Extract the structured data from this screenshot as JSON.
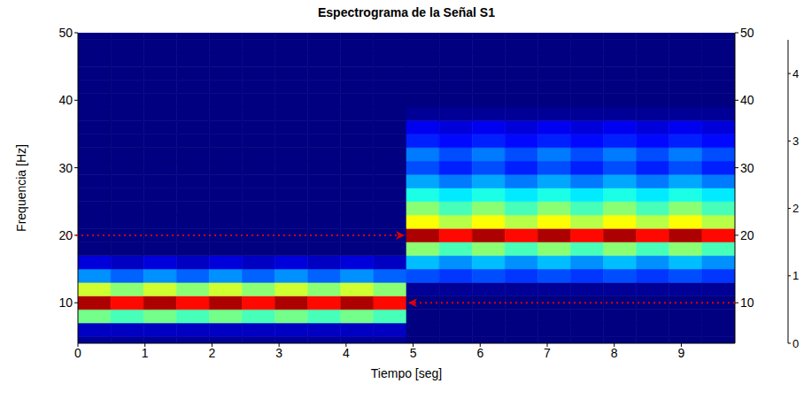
{
  "chart_data": {
    "type": "heatmap",
    "title": "Espectrograma de la Señal S1",
    "x_label": "Tiempo [seg]",
    "y_label": "Frequencia [Hz]",
    "xlim": [
      0,
      9.8
    ],
    "xticks": [
      0,
      1,
      2,
      3,
      4,
      5,
      6,
      7,
      8,
      9
    ],
    "ylim": [
      4,
      50
    ],
    "yticks": [
      10,
      20,
      30,
      40,
      50
    ],
    "grid": false,
    "time_edges": [
      0,
      0.49,
      0.98,
      1.47,
      1.96,
      2.45,
      2.94,
      3.43,
      3.92,
      4.41,
      4.9,
      5.39,
      5.88,
      6.37,
      6.86,
      7.35,
      7.84,
      8.33,
      8.82,
      9.31,
      9.8
    ],
    "freq_edges": [
      4,
      5,
      7,
      9,
      11,
      13,
      15,
      17,
      19,
      21,
      23,
      25,
      27,
      29,
      31,
      33,
      35,
      37,
      39,
      41,
      43,
      45,
      47,
      49,
      50
    ],
    "cells": [
      [
        0.1,
        0.3,
        2.2,
        4.3,
        2.6,
        1.2,
        0.4,
        0,
        0,
        0,
        0,
        0,
        0,
        0,
        0,
        0,
        0,
        0,
        0,
        0,
        0,
        0,
        0,
        0
      ],
      [
        0.1,
        0.3,
        2.0,
        3.9,
        2.3,
        1.0,
        0.3,
        0,
        0,
        0,
        0,
        0,
        0,
        0,
        0,
        0,
        0,
        0,
        0,
        0,
        0,
        0,
        0,
        0
      ],
      [
        0.1,
        0.3,
        2.2,
        4.3,
        2.6,
        1.2,
        0.4,
        0,
        0,
        0,
        0,
        0,
        0,
        0,
        0,
        0,
        0,
        0,
        0,
        0,
        0,
        0,
        0,
        0
      ],
      [
        0.1,
        0.3,
        2.0,
        3.9,
        2.3,
        1.0,
        0.3,
        0,
        0,
        0,
        0,
        0,
        0,
        0,
        0,
        0,
        0,
        0,
        0,
        0,
        0,
        0,
        0,
        0
      ],
      [
        0.1,
        0.3,
        2.2,
        4.3,
        2.6,
        1.2,
        0.4,
        0,
        0,
        0,
        0,
        0,
        0,
        0,
        0,
        0,
        0,
        0,
        0,
        0,
        0,
        0,
        0,
        0
      ],
      [
        0.1,
        0.3,
        2.0,
        3.9,
        2.3,
        1.0,
        0.3,
        0,
        0,
        0,
        0,
        0,
        0,
        0,
        0,
        0,
        0,
        0,
        0,
        0,
        0,
        0,
        0,
        0
      ],
      [
        0.1,
        0.3,
        2.2,
        4.3,
        2.6,
        1.2,
        0.4,
        0,
        0,
        0,
        0,
        0,
        0,
        0,
        0,
        0,
        0,
        0,
        0,
        0,
        0,
        0,
        0,
        0
      ],
      [
        0.1,
        0.3,
        2.0,
        3.9,
        2.3,
        1.0,
        0.3,
        0,
        0,
        0,
        0,
        0,
        0,
        0,
        0,
        0,
        0,
        0,
        0,
        0,
        0,
        0,
        0,
        0
      ],
      [
        0.1,
        0.3,
        2.2,
        4.3,
        2.6,
        1.2,
        0.4,
        0,
        0,
        0,
        0,
        0,
        0,
        0,
        0,
        0,
        0,
        0,
        0,
        0,
        0,
        0,
        0,
        0
      ],
      [
        0.1,
        0.3,
        2.0,
        3.9,
        2.3,
        1.0,
        0.3,
        0,
        0,
        0,
        0,
        0,
        0,
        0,
        0,
        0,
        0,
        0,
        0,
        0,
        0,
        0,
        0,
        0
      ],
      [
        0,
        0,
        0,
        0,
        0.1,
        0.9,
        1.4,
        2.3,
        4.3,
        2.8,
        2.3,
        1.8,
        1.3,
        0.9,
        1.1,
        0.7,
        0.5,
        0.1,
        0,
        0,
        0,
        0,
        0,
        0
      ],
      [
        0,
        0,
        0,
        0,
        0.1,
        0.8,
        1.2,
        2.0,
        3.9,
        2.5,
        2.0,
        1.6,
        1.1,
        0.7,
        0.9,
        0.6,
        0.4,
        0.1,
        0,
        0,
        0,
        0,
        0,
        0
      ],
      [
        0,
        0,
        0,
        0,
        0.1,
        0.9,
        1.4,
        2.3,
        4.3,
        2.8,
        2.3,
        1.8,
        1.3,
        0.9,
        1.1,
        0.7,
        0.5,
        0.1,
        0,
        0,
        0,
        0,
        0,
        0
      ],
      [
        0,
        0,
        0,
        0,
        0.1,
        0.8,
        1.2,
        2.0,
        3.9,
        2.5,
        2.0,
        1.6,
        1.1,
        0.7,
        0.9,
        0.6,
        0.4,
        0.1,
        0,
        0,
        0,
        0,
        0,
        0
      ],
      [
        0,
        0,
        0,
        0,
        0.1,
        0.9,
        1.4,
        2.3,
        4.3,
        2.8,
        2.3,
        1.8,
        1.3,
        0.9,
        1.1,
        0.7,
        0.5,
        0.1,
        0,
        0,
        0,
        0,
        0,
        0
      ],
      [
        0,
        0,
        0,
        0,
        0.1,
        0.8,
        1.2,
        2.0,
        3.9,
        2.5,
        2.0,
        1.6,
        1.1,
        0.7,
        0.9,
        0.6,
        0.4,
        0.1,
        0,
        0,
        0,
        0,
        0,
        0
      ],
      [
        0,
        0,
        0,
        0,
        0.1,
        0.9,
        1.4,
        2.3,
        4.3,
        2.8,
        2.3,
        1.8,
        1.3,
        0.9,
        1.1,
        0.7,
        0.5,
        0.1,
        0,
        0,
        0,
        0,
        0,
        0
      ],
      [
        0,
        0,
        0,
        0,
        0.1,
        0.8,
        1.2,
        2.0,
        3.9,
        2.5,
        2.0,
        1.6,
        1.1,
        0.7,
        0.9,
        0.6,
        0.4,
        0.1,
        0,
        0,
        0,
        0,
        0,
        0
      ],
      [
        0,
        0,
        0,
        0,
        0.1,
        0.9,
        1.4,
        2.3,
        4.3,
        2.8,
        2.3,
        1.8,
        1.3,
        0.9,
        1.1,
        0.7,
        0.5,
        0.1,
        0,
        0,
        0,
        0,
        0,
        0
      ],
      [
        0,
        0,
        0,
        0,
        0.1,
        0.8,
        1.2,
        2.0,
        3.9,
        2.5,
        2.0,
        1.6,
        1.1,
        0.7,
        0.9,
        0.6,
        0.4,
        0.1,
        0,
        0,
        0,
        0,
        0,
        0
      ]
    ],
    "colorbar": {
      "range": [
        0,
        4.5
      ],
      "ticks": [
        0,
        1,
        2,
        3,
        4
      ]
    }
  }
}
